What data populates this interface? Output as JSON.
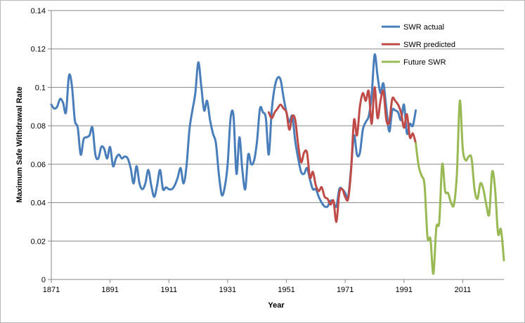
{
  "chart_data": {
    "type": "line",
    "title": "",
    "xlabel": "Year",
    "ylabel": "Maximum Safe Withdrawal Rate",
    "xlim": [
      1871,
      2025
    ],
    "ylim": [
      0,
      0.14
    ],
    "x_ticks": [
      "1871",
      "1891",
      "1911",
      "1931",
      "1951",
      "1971",
      "1991",
      "2011"
    ],
    "y_ticks": [
      "0",
      "0.02",
      "0.04",
      "0.06",
      "0.08",
      "0.1",
      "0.12",
      "0.14"
    ],
    "grid": "horizontal",
    "legend_position": "top-right",
    "series": [
      {
        "name": "SWR actual",
        "color": "#4a7ebb",
        "points": [
          [
            1871,
            0.091
          ],
          [
            1872,
            0.089
          ],
          [
            1873,
            0.09
          ],
          [
            1874,
            0.094
          ],
          [
            1875,
            0.092
          ],
          [
            1876,
            0.087
          ],
          [
            1877,
            0.106
          ],
          [
            1878,
            0.101
          ],
          [
            1879,
            0.083
          ],
          [
            1880,
            0.079
          ],
          [
            1881,
            0.065
          ],
          [
            1882,
            0.073
          ],
          [
            1883,
            0.074
          ],
          [
            1884,
            0.075
          ],
          [
            1885,
            0.079
          ],
          [
            1886,
            0.065
          ],
          [
            1887,
            0.063
          ],
          [
            1888,
            0.069
          ],
          [
            1889,
            0.068
          ],
          [
            1890,
            0.063
          ],
          [
            1891,
            0.069
          ],
          [
            1892,
            0.059
          ],
          [
            1893,
            0.063
          ],
          [
            1894,
            0.065
          ],
          [
            1895,
            0.063
          ],
          [
            1896,
            0.064
          ],
          [
            1897,
            0.063
          ],
          [
            1898,
            0.058
          ],
          [
            1899,
            0.05
          ],
          [
            1900,
            0.059
          ],
          [
            1901,
            0.05
          ],
          [
            1902,
            0.047
          ],
          [
            1903,
            0.05
          ],
          [
            1904,
            0.057
          ],
          [
            1905,
            0.049
          ],
          [
            1906,
            0.043
          ],
          [
            1907,
            0.049
          ],
          [
            1908,
            0.057
          ],
          [
            1909,
            0.047
          ],
          [
            1910,
            0.048
          ],
          [
            1911,
            0.047
          ],
          [
            1912,
            0.047
          ],
          [
            1913,
            0.049
          ],
          [
            1914,
            0.053
          ],
          [
            1915,
            0.058
          ],
          [
            1916,
            0.05
          ],
          [
            1917,
            0.059
          ],
          [
            1918,
            0.078
          ],
          [
            1919,
            0.088
          ],
          [
            1920,
            0.097
          ],
          [
            1921,
            0.113
          ],
          [
            1922,
            0.101
          ],
          [
            1923,
            0.088
          ],
          [
            1924,
            0.093
          ],
          [
            1925,
            0.083
          ],
          [
            1926,
            0.076
          ],
          [
            1927,
            0.071
          ],
          [
            1928,
            0.055
          ],
          [
            1929,
            0.044
          ],
          [
            1930,
            0.048
          ],
          [
            1931,
            0.06
          ],
          [
            1932,
            0.084
          ],
          [
            1933,
            0.085
          ],
          [
            1934,
            0.055
          ],
          [
            1935,
            0.074
          ],
          [
            1936,
            0.057
          ],
          [
            1937,
            0.047
          ],
          [
            1938,
            0.065
          ],
          [
            1939,
            0.06
          ],
          [
            1940,
            0.062
          ],
          [
            1941,
            0.072
          ],
          [
            1942,
            0.089
          ],
          [
            1943,
            0.087
          ],
          [
            1944,
            0.084
          ],
          [
            1945,
            0.065
          ],
          [
            1946,
            0.088
          ],
          [
            1947,
            0.1
          ],
          [
            1948,
            0.105
          ],
          [
            1949,
            0.104
          ],
          [
            1950,
            0.095
          ],
          [
            1951,
            0.087
          ],
          [
            1952,
            0.082
          ],
          [
            1953,
            0.085
          ],
          [
            1954,
            0.072
          ],
          [
            1955,
            0.063
          ],
          [
            1956,
            0.056
          ],
          [
            1957,
            0.055
          ],
          [
            1958,
            0.058
          ],
          [
            1959,
            0.052
          ],
          [
            1960,
            0.047
          ],
          [
            1961,
            0.047
          ],
          [
            1962,
            0.043
          ],
          [
            1963,
            0.04
          ],
          [
            1964,
            0.038
          ],
          [
            1965,
            0.038
          ],
          [
            1966,
            0.041
          ],
          [
            1967,
            0.04
          ],
          [
            1968,
            0.038
          ],
          [
            1969,
            0.047
          ],
          [
            1970,
            0.047
          ],
          [
            1971,
            0.045
          ],
          [
            1972,
            0.043
          ],
          [
            1973,
            0.058
          ],
          [
            1974,
            0.075
          ],
          [
            1975,
            0.065
          ],
          [
            1976,
            0.066
          ],
          [
            1977,
            0.078
          ],
          [
            1978,
            0.082
          ],
          [
            1979,
            0.085
          ],
          [
            1980,
            0.096
          ],
          [
            1981,
            0.117
          ],
          [
            1982,
            0.106
          ],
          [
            1983,
            0.097
          ],
          [
            1984,
            0.102
          ],
          [
            1985,
            0.089
          ],
          [
            1986,
            0.077
          ],
          [
            1987,
            0.088
          ],
          [
            1988,
            0.088
          ],
          [
            1989,
            0.087
          ],
          [
            1990,
            0.083
          ],
          [
            1991,
            0.091
          ],
          [
            1992,
            0.076
          ],
          [
            1993,
            0.081
          ],
          [
            1994,
            0.08
          ],
          [
            1995,
            0.088
          ]
        ]
      },
      {
        "name": "SWR predicted",
        "color": "#be4b48",
        "points": [
          [
            1945,
            0.087
          ],
          [
            1946,
            0.084
          ],
          [
            1947,
            0.087
          ],
          [
            1948,
            0.089
          ],
          [
            1949,
            0.091
          ],
          [
            1950,
            0.089
          ],
          [
            1951,
            0.087
          ],
          [
            1952,
            0.078
          ],
          [
            1953,
            0.085
          ],
          [
            1954,
            0.083
          ],
          [
            1955,
            0.07
          ],
          [
            1956,
            0.061
          ],
          [
            1957,
            0.066
          ],
          [
            1958,
            0.066
          ],
          [
            1959,
            0.053
          ],
          [
            1960,
            0.056
          ],
          [
            1961,
            0.049
          ],
          [
            1962,
            0.046
          ],
          [
            1963,
            0.048
          ],
          [
            1964,
            0.043
          ],
          [
            1965,
            0.042
          ],
          [
            1966,
            0.039
          ],
          [
            1967,
            0.041
          ],
          [
            1968,
            0.03
          ],
          [
            1969,
            0.045
          ],
          [
            1970,
            0.047
          ],
          [
            1971,
            0.043
          ],
          [
            1972,
            0.042
          ],
          [
            1973,
            0.057
          ],
          [
            1974,
            0.083
          ],
          [
            1975,
            0.075
          ],
          [
            1976,
            0.09
          ],
          [
            1977,
            0.097
          ],
          [
            1978,
            0.093
          ],
          [
            1979,
            0.098
          ],
          [
            1980,
            0.081
          ],
          [
            1981,
            0.1
          ],
          [
            1982,
            0.084
          ],
          [
            1983,
            0.093
          ],
          [
            1984,
            0.098
          ],
          [
            1985,
            0.083
          ],
          [
            1986,
            0.082
          ],
          [
            1987,
            0.094
          ],
          [
            1988,
            0.093
          ],
          [
            1989,
            0.091
          ],
          [
            1990,
            0.087
          ],
          [
            1991,
            0.079
          ],
          [
            1992,
            0.086
          ],
          [
            1993,
            0.074
          ],
          [
            1994,
            0.076
          ],
          [
            1995,
            0.071
          ]
        ]
      },
      {
        "name": "Future SWR",
        "color": "#98b954",
        "points": [
          [
            1995,
            0.071
          ],
          [
            1996,
            0.059
          ],
          [
            1997,
            0.054
          ],
          [
            1998,
            0.049
          ],
          [
            1999,
            0.022
          ],
          [
            2000,
            0.021
          ],
          [
            2001,
            0.003
          ],
          [
            2002,
            0.027
          ],
          [
            2003,
            0.03
          ],
          [
            2004,
            0.06
          ],
          [
            2005,
            0.046
          ],
          [
            2006,
            0.045
          ],
          [
            2007,
            0.04
          ],
          [
            2008,
            0.039
          ],
          [
            2009,
            0.055
          ],
          [
            2010,
            0.093
          ],
          [
            2011,
            0.068
          ],
          [
            2012,
            0.062
          ],
          [
            2013,
            0.064
          ],
          [
            2014,
            0.063
          ],
          [
            2015,
            0.047
          ],
          [
            2016,
            0.042
          ],
          [
            2017,
            0.05
          ],
          [
            2018,
            0.047
          ],
          [
            2019,
            0.039
          ],
          [
            2020,
            0.034
          ],
          [
            2021,
            0.056
          ],
          [
            2022,
            0.047
          ],
          [
            2023,
            0.024
          ],
          [
            2024,
            0.026
          ],
          [
            2025,
            0.01
          ]
        ]
      }
    ]
  }
}
